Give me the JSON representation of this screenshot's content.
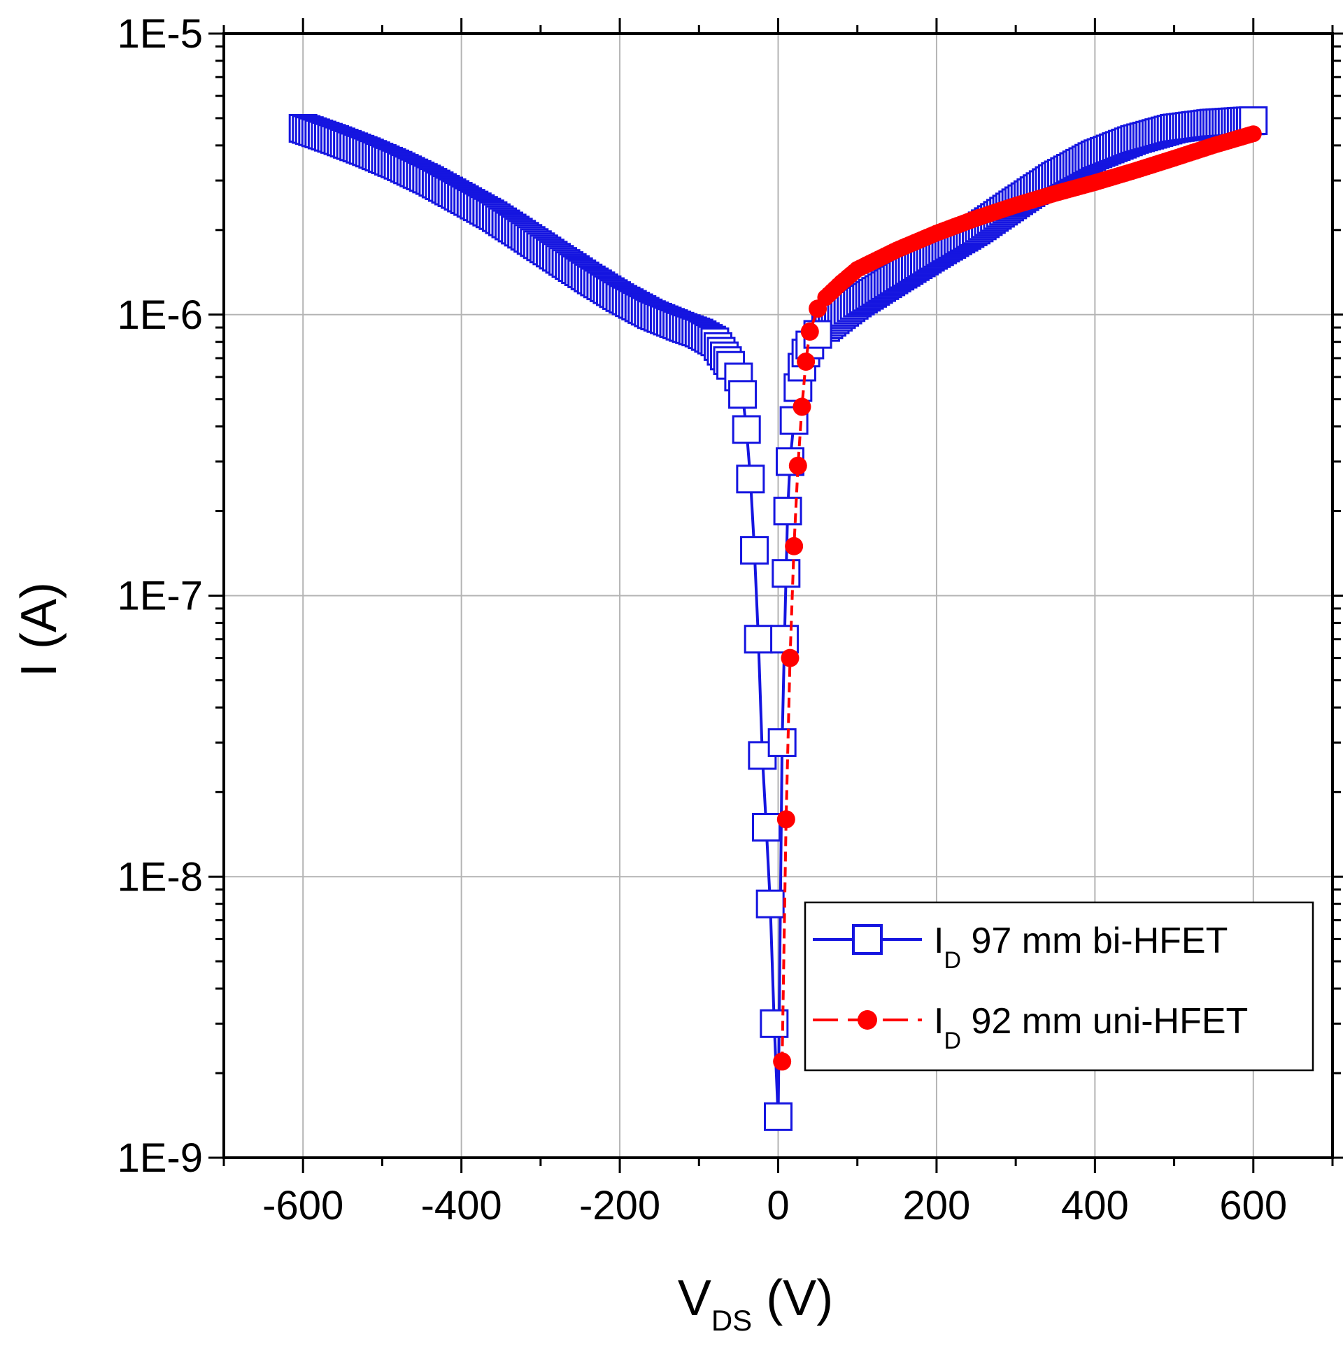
{
  "chart_data": {
    "type": "scatter",
    "title": "",
    "xlabel": {
      "main": "V",
      "sub": "DS",
      "unit": " (V)"
    },
    "ylabel": "I (A)",
    "xlim": [
      -700,
      700
    ],
    "ylim": [
      1e-09,
      1e-05
    ],
    "yscale": "log",
    "grid": true,
    "legend_position": "bottom-right",
    "x_ticks": [
      -600,
      -400,
      -200,
      0,
      200,
      400,
      600
    ],
    "x_tick_labels": [
      "-600",
      "-400",
      "-200",
      "0",
      "200",
      "400",
      "600"
    ],
    "y_ticks": [
      1e-09,
      1e-08,
      1e-07,
      1e-06,
      1e-05
    ],
    "y_tick_labels": [
      "1E-9",
      "1E-8",
      "1E-7",
      "1E-6",
      "1E-5"
    ],
    "series": [
      {
        "label_main": "I",
        "label_sub": "D",
        "label_rest": " 97 mm bi-HFET",
        "color": "#1515e0",
        "marker": "square-open",
        "x": [
          -600,
          -560,
          -520,
          -480,
          -440,
          -400,
          -360,
          -320,
          -280,
          -240,
          -200,
          -160,
          -120,
          -100,
          -80,
          -60,
          -50,
          -45,
          -40,
          -35,
          -30,
          -25,
          -20,
          -15,
          -10,
          -5,
          0,
          5,
          8,
          10,
          12,
          15,
          20,
          25,
          30,
          35,
          40,
          50,
          60,
          80,
          100,
          150,
          200,
          250,
          300,
          350,
          400,
          450,
          500,
          550,
          600
        ],
        "y": [
          4.6e-06,
          4.2e-06,
          3.8e-06,
          3.4e-06,
          3e-06,
          2.6e-06,
          2.25e-06,
          1.9e-06,
          1.6e-06,
          1.35e-06,
          1.15e-06,
          1e-06,
          9e-07,
          8.6e-07,
          8e-07,
          6.6e-07,
          6e-07,
          5.2e-07,
          3.9e-07,
          2.6e-07,
          1.45e-07,
          7e-08,
          2.7e-08,
          1.5e-08,
          8e-09,
          3e-09,
          1.4e-09,
          3e-08,
          7e-08,
          1.2e-07,
          2e-07,
          3e-07,
          4.2e-07,
          5.5e-07,
          6.5e-07,
          7.3e-07,
          7.8e-07,
          8.5e-07,
          9e-07,
          1e-06,
          1.1e-06,
          1.35e-06,
          1.65e-06,
          2e-06,
          2.5e-06,
          3.1e-06,
          3.7e-06,
          4.2e-06,
          4.6e-06,
          4.8e-06,
          4.9e-06
        ]
      },
      {
        "label_main": "I",
        "label_sub": "D",
        "label_rest": " 92 mm uni-HFET",
        "color": "#ff0000",
        "marker": "circle-filled",
        "x": [
          5,
          10,
          15,
          20,
          25,
          30,
          35,
          40,
          50,
          60,
          80,
          100,
          150,
          200,
          250,
          300,
          350,
          400,
          450,
          500,
          550,
          600
        ],
        "y": [
          2.2e-09,
          1.6e-08,
          6e-08,
          1.5e-07,
          2.9e-07,
          4.7e-07,
          6.8e-07,
          8.7e-07,
          1.05e-06,
          1.15e-06,
          1.3e-06,
          1.45e-06,
          1.7e-06,
          1.95e-06,
          2.2e-06,
          2.45e-06,
          2.7e-06,
          2.95e-06,
          3.25e-06,
          3.6e-06,
          4e-06,
          4.4e-06
        ]
      }
    ]
  }
}
